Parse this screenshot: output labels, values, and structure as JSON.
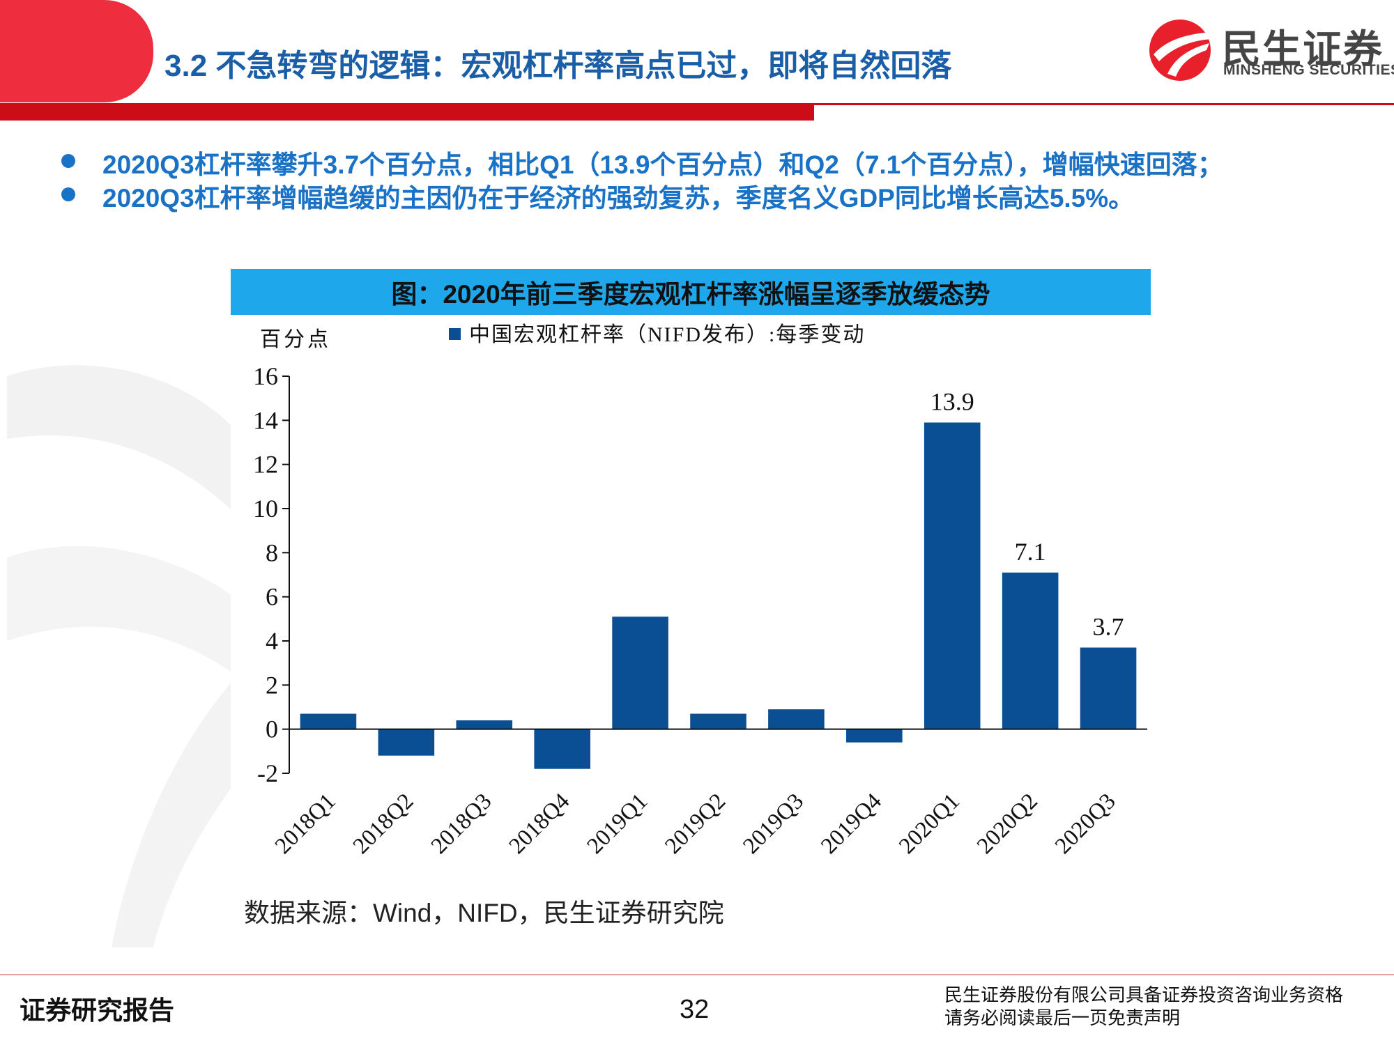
{
  "header": {
    "title": "3.2 不急转弯的逻辑：宏观杠杆率高点已过，即将自然回落",
    "logo_cn": "民生证券",
    "logo_en": "MINSHENG SECURITIES"
  },
  "bullets": [
    "2020Q3杠杆率攀升3.7个百分点，相比Q1（13.9个百分点）和Q2（7.1个百分点），增幅快速回落；",
    "2020Q3杠杆率增幅趋缓的主因仍在于经济的强劲复苏，季度名义GDP同比增长高达5.5%。"
  ],
  "chart_data": {
    "type": "bar",
    "title": "图：2020年前三季度宏观杠杆率涨幅呈逐季放缓态势",
    "ylabel": "百分点",
    "legend": "中国宏观杠杆率（NIFD发布）:每季变动",
    "legend_position": "top",
    "categories": [
      "2018Q1",
      "2018Q2",
      "2018Q3",
      "2018Q4",
      "2019Q1",
      "2019Q2",
      "2019Q3",
      "2019Q4",
      "2020Q1",
      "2020Q2",
      "2020Q3"
    ],
    "series": [
      {
        "name": "中国宏观杠杆率（NIFD发布）:每季变动",
        "values": [
          0.7,
          -1.2,
          0.4,
          -1.8,
          5.1,
          0.7,
          0.9,
          -0.6,
          13.9,
          7.1,
          3.7
        ]
      }
    ],
    "data_labels": [
      "",
      "",
      "",
      "",
      "",
      "",
      "",
      "",
      "13.9",
      "7.1",
      "3.7"
    ],
    "ylim": [
      -2,
      16
    ],
    "yticks": [
      -2,
      0,
      2,
      4,
      6,
      8,
      10,
      12,
      14,
      16
    ],
    "grid": false,
    "bar_color": "#0a4f94"
  },
  "source": "数据来源：Wind，NIFD，民生证券研究院",
  "footer": {
    "left": "证券研究报告",
    "page": "32",
    "right_line1": "民生证券股份有限公司具备证券投资咨询业务资格",
    "right_line2": "请务必阅读最后一页免责声明"
  }
}
